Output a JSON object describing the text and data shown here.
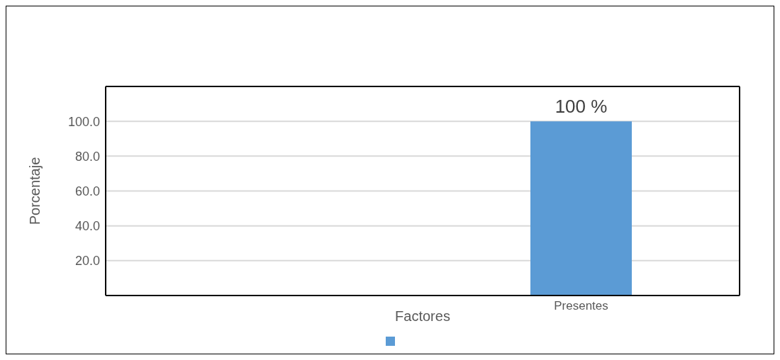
{
  "chart_data": {
    "type": "bar",
    "xlabel": "Factores",
    "ylabel": "Porcentaje",
    "categories": [
      null,
      "Presentes"
    ],
    "series": [
      {
        "color": "#5b9bd5",
        "values": [
          null,
          100
        ],
        "value_labels": [
          null,
          "100 %"
        ]
      }
    ],
    "ylim": [
      0,
      120
    ],
    "yticks": [
      {
        "value": 20,
        "label": "20.0"
      },
      {
        "value": 40,
        "label": "40.0"
      },
      {
        "value": 60,
        "label": "60.0"
      },
      {
        "value": 80,
        "label": "80.0"
      },
      {
        "value": 100,
        "label": "100.0"
      }
    ],
    "grid": "y"
  }
}
